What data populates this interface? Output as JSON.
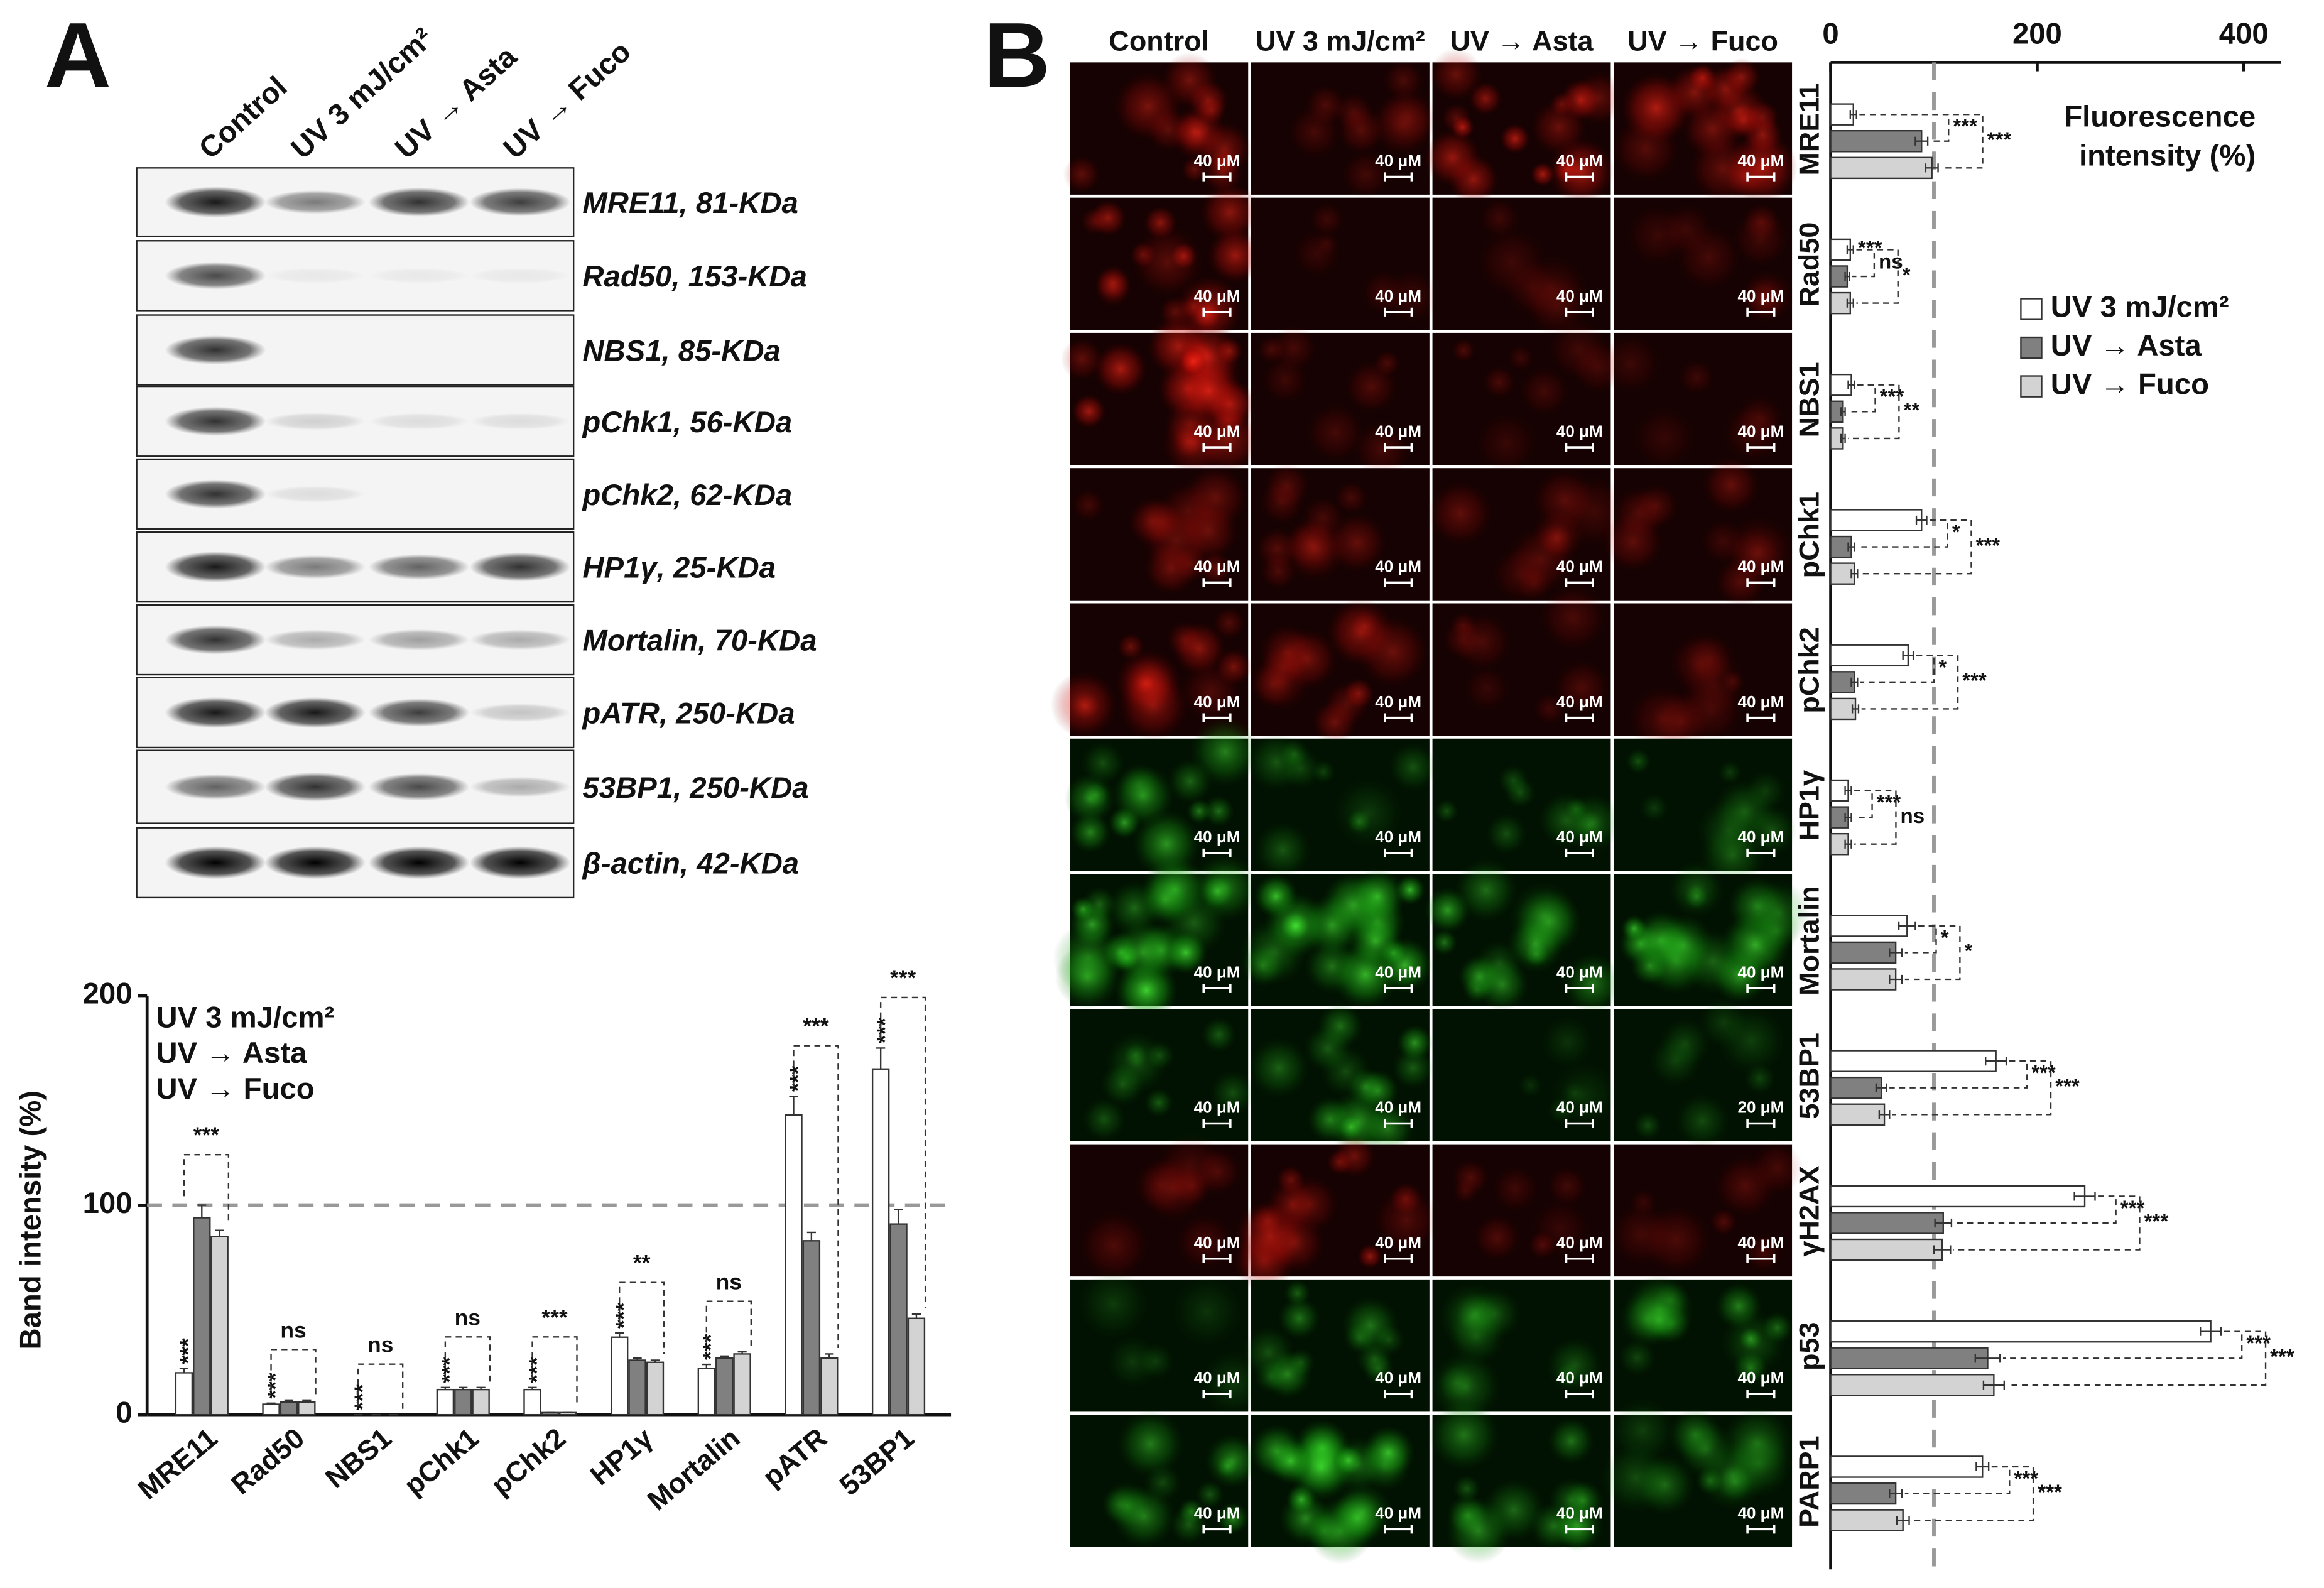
{
  "panels": {
    "A": {
      "letter": "A",
      "blot": {
        "lanes": [
          "Control",
          "UV 3 mJ/cm²",
          "UV → Asta",
          "UV → Fuco"
        ],
        "rows": [
          "MRE11, 81-KDa",
          "Rad50, 153-KDa",
          "NBS1, 85-KDa",
          "pChk1, 56-KDa",
          "pChk2, 62-KDa",
          "HP1γ, 25-KDa",
          "Mortalin, 70-KDa",
          "pATR, 250-KDa",
          "53BP1, 250-KDa",
          "β-actin, 42-KDa"
        ]
      }
    },
    "B": {
      "letter": "B",
      "columns": [
        "Control",
        "UV 3 mJ/cm²",
        "UV → Asta",
        "UV → Fuco"
      ],
      "scale_bars": [
        [
          "40 μM",
          "40 μM",
          "40 μM",
          "40 μM"
        ],
        [
          "40 μM",
          "40 μM",
          "40 μM",
          "40 μM"
        ],
        [
          "40 μM",
          "40 μM",
          "40 μM",
          "40 μM"
        ],
        [
          "40 μM",
          "40 μM",
          "40 μM",
          "40 μM"
        ],
        [
          "40 μM",
          "40 μM",
          "40 μM",
          "40 μM"
        ],
        [
          "40 μM",
          "40 μM",
          "40 μM",
          "40 μM"
        ],
        [
          "40 μM",
          "40 μM",
          "40 μM",
          "40 μM"
        ],
        [
          "40 μM",
          "40 μM",
          "40 μM",
          "20 μM"
        ],
        [
          "40 μM",
          "40 μM",
          "40 μM",
          "40 μM"
        ],
        [
          "40 μM",
          "40 μM",
          "40 μM",
          "40 μM"
        ],
        [
          "40 μM",
          "40 μM",
          "40 μM",
          "40 μM"
        ]
      ]
    }
  },
  "chart_data": [
    {
      "type": "bar",
      "ylabel": "Band intensity (%)",
      "categories": [
        "MRE11",
        "Rad50",
        "NBS1",
        "pChk1",
        "pChk2",
        "HP1γ",
        "Mortalin",
        "pATR",
        "53BP1"
      ],
      "series": [
        {
          "name": "UV 3 mJ/cm²",
          "color": "#ffffff",
          "values": [
            20,
            5,
            0,
            12,
            12,
            37,
            22,
            143,
            165
          ],
          "errors": [
            2,
            0.5,
            0,
            1,
            1,
            2,
            2,
            9,
            10
          ]
        },
        {
          "name": "UV → Asta",
          "color": "#808080",
          "values": [
            94,
            6,
            0,
            12,
            1,
            26,
            27,
            83,
            91
          ],
          "errors": [
            6,
            1,
            0,
            1,
            0,
            1,
            1,
            4,
            7
          ]
        },
        {
          "name": "UV → Fuco",
          "color": "#d3d3d3",
          "values": [
            85,
            6,
            0,
            12,
            1,
            25,
            29,
            27,
            46
          ],
          "errors": [
            3,
            1,
            0,
            1,
            0,
            1,
            1,
            2,
            2
          ]
        }
      ],
      "ylim": [
        0,
        200
      ],
      "yticks": [
        0,
        100,
        200
      ],
      "reference_line": 100,
      "legend": "top-left",
      "significance": [
        [
          "***",
          "***"
        ],
        [
          "***",
          "ns"
        ],
        [
          "***",
          "ns"
        ],
        [
          "***",
          "ns"
        ],
        [
          "***",
          "***"
        ],
        [
          "***",
          "**"
        ],
        [
          "***",
          "ns"
        ],
        [
          "***",
          "***"
        ],
        [
          "***",
          "***"
        ]
      ]
    },
    {
      "type": "barh",
      "xlabel_lines": [
        "Fluorescence",
        "intensity (%)"
      ],
      "categories": [
        "MRE11",
        "Rad50",
        "NBS1",
        "pChk1",
        "pChk2",
        "HP1γ",
        "Mortalin",
        "53BP1",
        "γH2AX",
        "p53",
        "PARP1"
      ],
      "series": [
        {
          "name": "UV 3 mJ/cm²",
          "color": "#ffffff",
          "values": [
            22,
            19,
            20,
            88,
            75,
            17,
            74,
            160,
            246,
            368,
            147
          ],
          "errors": [
            3,
            3,
            3,
            5,
            5,
            3,
            8,
            10,
            10,
            10,
            6
          ]
        },
        {
          "name": "UV → Asta",
          "color": "#808080",
          "values": [
            88,
            16,
            12,
            20,
            23,
            17,
            63,
            49,
            109,
            152,
            63
          ],
          "errors": [
            6,
            2,
            2,
            3,
            3,
            3,
            6,
            5,
            8,
            12,
            6
          ]
        },
        {
          "name": "UV → Fuco",
          "color": "#d3d3d3",
          "values": [
            98,
            19,
            12,
            23,
            24,
            17,
            63,
            52,
            108,
            158,
            70
          ],
          "errors": [
            6,
            3,
            2,
            3,
            3,
            3,
            6,
            5,
            8,
            10,
            6
          ]
        }
      ],
      "xlim": [
        0,
        400
      ],
      "xticks": [
        0,
        200,
        400
      ],
      "reference_line": 100,
      "legend": "top-right",
      "significance": [
        [
          "***",
          "***"
        ],
        [
          "***",
          "ns",
          "*"
        ],
        [
          "***",
          "**"
        ],
        [
          "*",
          "***"
        ],
        [
          "*",
          "***"
        ],
        [
          "***",
          "ns"
        ],
        [
          "*",
          "*"
        ],
        [
          "***",
          "***"
        ],
        [
          "***",
          "***"
        ],
        [
          "***",
          "***"
        ],
        [
          "***",
          "***"
        ]
      ]
    }
  ]
}
